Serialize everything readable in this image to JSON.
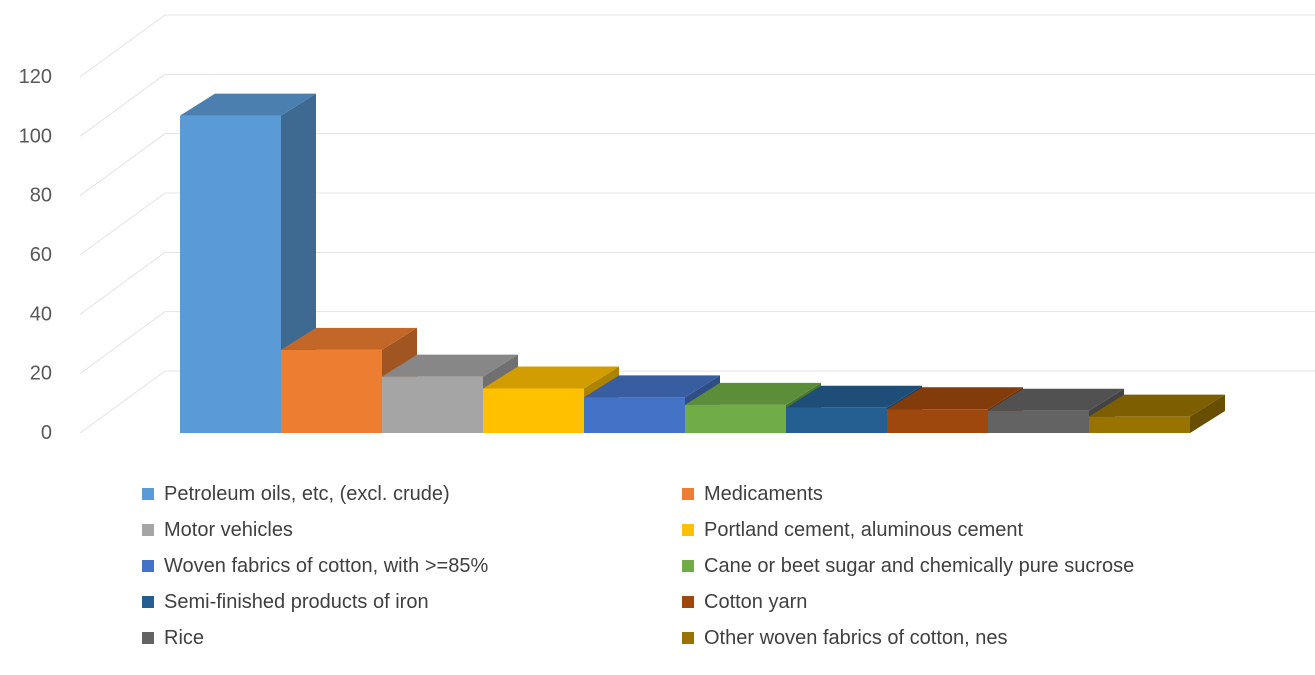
{
  "chart_data": {
    "type": "bar",
    "title": "",
    "xlabel": "",
    "ylabel": "",
    "ylim": [
      0,
      120
    ],
    "yticks": [
      0,
      20,
      40,
      60,
      80,
      100,
      120
    ],
    "grid": true,
    "style": "3d-column",
    "legend_position": "bottom",
    "categories": [
      "Petroleum oils, etc, (excl. crude)",
      "Medicaments",
      "Motor vehicles",
      "Portland cement, aluminous cement",
      "Woven fabrics of cotton, with >=85%",
      "Cane or beet sugar and chemically pure sucrose",
      "Semi-finished products of iron",
      "Cotton yarn",
      "Rice",
      "Other woven fabrics of cotton, nes"
    ],
    "values": [
      107,
      28,
      19,
      15,
      12,
      9.5,
      8.5,
      8,
      7.5,
      5.5
    ],
    "colors": [
      "#5b9bd5",
      "#ed7d31",
      "#a5a5a5",
      "#ffc000",
      "#4472c4",
      "#70ad47",
      "#255e91",
      "#9e480e",
      "#636363",
      "#997300"
    ]
  }
}
